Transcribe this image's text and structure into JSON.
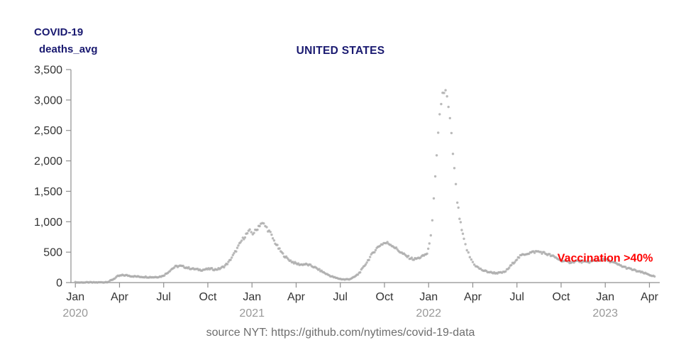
{
  "labels": {
    "metric_line1": "COVID-19",
    "metric_line2": "deaths_avg",
    "title": "UNITED STATES",
    "caption": "source NYT: https://github.com/nytimes/covid-19-data"
  },
  "colors": {
    "title": "#191970",
    "metric_label": "#191970",
    "dots": "#ababab",
    "axis": "#8f8f8f",
    "tick_label": "#333333",
    "year_label": "#999999",
    "caption": "#6e6e6e",
    "annotation": "#ff0000",
    "background": "#ffffff"
  },
  "chart_data": {
    "type": "scatter",
    "title": "UNITED STATES",
    "series_name": "deaths_avg",
    "xlabel": "",
    "ylabel": "deaths_avg",
    "x_unit": "months since Jan 2020",
    "xlim": [
      -0.3,
      39.7
    ],
    "ylim": [
      0,
      3500
    ],
    "grid": false,
    "legend": "none",
    "y_ticks": [
      {
        "v": 0,
        "label": "0"
      },
      {
        "v": 500,
        "label": "500"
      },
      {
        "v": 1000,
        "label": "1,000"
      },
      {
        "v": 1500,
        "label": "1,500"
      },
      {
        "v": 2000,
        "label": "2,000"
      },
      {
        "v": 2500,
        "label": "2,500"
      },
      {
        "v": 3000,
        "label": "3,000"
      },
      {
        "v": 3500,
        "label": "3,500"
      }
    ],
    "x_ticks": [
      {
        "m": 0,
        "label": "Jan"
      },
      {
        "m": 3,
        "label": "Apr"
      },
      {
        "m": 6,
        "label": "Jul"
      },
      {
        "m": 9,
        "label": "Oct"
      },
      {
        "m": 12,
        "label": "Jan"
      },
      {
        "m": 15,
        "label": "Apr"
      },
      {
        "m": 18,
        "label": "Jul"
      },
      {
        "m": 21,
        "label": "Oct"
      },
      {
        "m": 24,
        "label": "Jan"
      },
      {
        "m": 27,
        "label": "Apr"
      },
      {
        "m": 30,
        "label": "Jul"
      },
      {
        "m": 33,
        "label": "Oct"
      },
      {
        "m": 36,
        "label": "Jan"
      },
      {
        "m": 39,
        "label": "Apr"
      }
    ],
    "year_ticks": [
      {
        "m": 0,
        "label": "2020"
      },
      {
        "m": 12,
        "label": "2021"
      },
      {
        "m": 24,
        "label": "2022"
      },
      {
        "m": 36,
        "label": "2023"
      }
    ],
    "annotations": [
      {
        "text": "Vaccination >40%",
        "x": 32.75,
        "y": 345,
        "color": "#ff0000",
        "anchor": "start",
        "bold": true,
        "font_size": 16
      }
    ],
    "points": [
      [
        0,
        2
      ],
      [
        0.5,
        1
      ],
      [
        1,
        1
      ],
      [
        1.5,
        2
      ],
      [
        2,
        6
      ],
      [
        2.3,
        18
      ],
      [
        2.6,
        60
      ],
      [
        2.9,
        105
      ],
      [
        3.2,
        120
      ],
      [
        3.5,
        118
      ],
      [
        3.8,
        108
      ],
      [
        4.1,
        100
      ],
      [
        4.4,
        97
      ],
      [
        4.7,
        94
      ],
      [
        5,
        91
      ],
      [
        5.3,
        89
      ],
      [
        5.6,
        94
      ],
      [
        5.9,
        105
      ],
      [
        6.2,
        150
      ],
      [
        6.5,
        215
      ],
      [
        6.8,
        262
      ],
      [
        7.1,
        272
      ],
      [
        7.4,
        258
      ],
      [
        7.7,
        238
      ],
      [
        8,
        225
      ],
      [
        8.3,
        214
      ],
      [
        8.6,
        208
      ],
      [
        8.9,
        218
      ],
      [
        9.2,
        226
      ],
      [
        9.5,
        214
      ],
      [
        9.8,
        228
      ],
      [
        10.1,
        265
      ],
      [
        10.4,
        330
      ],
      [
        10.7,
        440
      ],
      [
        11,
        560
      ],
      [
        11.3,
        690
      ],
      [
        11.6,
        790
      ],
      [
        11.85,
        845
      ],
      [
        12.05,
        808
      ],
      [
        12.3,
        860
      ],
      [
        12.45,
        930
      ],
      [
        12.6,
        970
      ],
      [
        12.8,
        955
      ],
      [
        13,
        900
      ],
      [
        13.25,
        810
      ],
      [
        13.5,
        685
      ],
      [
        13.8,
        565
      ],
      [
        14.1,
        465
      ],
      [
        14.4,
        395
      ],
      [
        14.7,
        345
      ],
      [
        15,
        312
      ],
      [
        15.3,
        296
      ],
      [
        15.6,
        302
      ],
      [
        15.9,
        286
      ],
      [
        16.2,
        258
      ],
      [
        16.5,
        218
      ],
      [
        16.8,
        176
      ],
      [
        17.1,
        136
      ],
      [
        17.4,
        102
      ],
      [
        17.7,
        76
      ],
      [
        18,
        60
      ],
      [
        18.3,
        50
      ],
      [
        18.6,
        56
      ],
      [
        18.9,
        82
      ],
      [
        19.2,
        135
      ],
      [
        19.5,
        225
      ],
      [
        19.8,
        335
      ],
      [
        20.1,
        445
      ],
      [
        20.4,
        545
      ],
      [
        20.7,
        615
      ],
      [
        20.95,
        648
      ],
      [
        21.2,
        650
      ],
      [
        21.5,
        618
      ],
      [
        21.8,
        558
      ],
      [
        22.1,
        498
      ],
      [
        22.4,
        448
      ],
      [
        22.7,
        408
      ],
      [
        23,
        382
      ],
      [
        23.3,
        402
      ],
      [
        23.6,
        432
      ],
      [
        23.9,
        480
      ],
      [
        24.05,
        620
      ],
      [
        24.15,
        800
      ],
      [
        24.25,
        1050
      ],
      [
        24.35,
        1350
      ],
      [
        24.45,
        1700
      ],
      [
        24.55,
        2050
      ],
      [
        24.65,
        2400
      ],
      [
        24.75,
        2720
      ],
      [
        24.85,
        2960
      ],
      [
        24.95,
        3100
      ],
      [
        25.05,
        3150
      ],
      [
        25.15,
        3120
      ],
      [
        25.25,
        3020
      ],
      [
        25.35,
        2860
      ],
      [
        25.45,
        2650
      ],
      [
        25.55,
        2400
      ],
      [
        25.65,
        2130
      ],
      [
        25.75,
        1850
      ],
      [
        25.85,
        1580
      ],
      [
        25.95,
        1330
      ],
      [
        26.1,
        1060
      ],
      [
        26.25,
        860
      ],
      [
        26.4,
        700
      ],
      [
        26.6,
        540
      ],
      [
        26.8,
        420
      ],
      [
        27,
        335
      ],
      [
        27.2,
        275
      ],
      [
        27.45,
        230
      ],
      [
        27.7,
        200
      ],
      [
        28,
        178
      ],
      [
        28.3,
        164
      ],
      [
        28.6,
        157
      ],
      [
        28.9,
        160
      ],
      [
        29.15,
        172
      ],
      [
        29.4,
        225
      ],
      [
        29.7,
        310
      ],
      [
        30,
        390
      ],
      [
        30.3,
        445
      ],
      [
        30.6,
        475
      ],
      [
        30.9,
        490
      ],
      [
        31.2,
        505
      ],
      [
        31.45,
        510
      ],
      [
        31.7,
        495
      ],
      [
        32,
        472
      ],
      [
        32.3,
        445
      ],
      [
        32.6,
        412
      ],
      [
        32.9,
        378
      ],
      [
        33.2,
        350
      ],
      [
        33.5,
        334
      ],
      [
        33.8,
        342
      ],
      [
        34.1,
        355
      ],
      [
        34.4,
        344
      ],
      [
        34.7,
        332
      ],
      [
        35,
        345
      ],
      [
        35.3,
        358
      ],
      [
        35.6,
        368
      ],
      [
        35.85,
        374
      ],
      [
        36.1,
        370
      ],
      [
        36.4,
        344
      ],
      [
        36.7,
        312
      ],
      [
        37,
        282
      ],
      [
        37.3,
        254
      ],
      [
        37.6,
        230
      ],
      [
        37.9,
        208
      ],
      [
        38.2,
        186
      ],
      [
        38.5,
        166
      ],
      [
        38.8,
        144
      ],
      [
        39.1,
        120
      ],
      [
        39.35,
        100
      ]
    ]
  }
}
